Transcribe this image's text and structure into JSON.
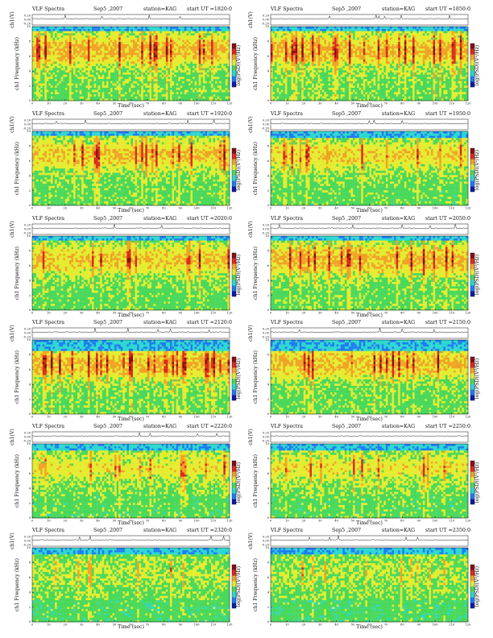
{
  "figure": {
    "header_left": "VLF Spectra",
    "date": "Sep5 ,2007",
    "station": "station=KAG",
    "start_prefix": "start UT =",
    "ch_ylabel": "ch1(V)",
    "freq_ylabel": "ch1 Frequency (kHz)",
    "xlabel": "Time (sec)",
    "colorbar_label": "log(PSD)(V²/Hz)"
  },
  "chart_data": [
    {
      "type": "heatmap",
      "start_ut": "1820:0",
      "xlabel": "Time (sec)",
      "ylabel": "ch1 Frequency (kHz)",
      "colorbar_label": "log(PSD)(V²/Hz)",
      "x_ticks": [
        0,
        10,
        20,
        30,
        40,
        50,
        60,
        70,
        80,
        90,
        100,
        110,
        120
      ],
      "y_ticks": [
        0,
        2,
        4,
        6,
        8,
        10
      ],
      "ch_ticks": [
        "0.20",
        "0.00",
        "-0.20"
      ],
      "xlim": [
        0,
        120
      ],
      "ylim": [
        0,
        10
      ],
      "activity": 0.85,
      "noise_band_top_khz": 9.3
    },
    {
      "type": "heatmap",
      "start_ut": "1850:0",
      "xlabel": "Time (sec)",
      "ylabel": "ch1 Frequency (kHz)",
      "colorbar_label": "log(PSD)(V²/Hz)",
      "x_ticks": [
        0,
        10,
        20,
        30,
        40,
        50,
        60,
        70,
        80,
        90,
        100,
        110,
        120
      ],
      "y_ticks": [
        0,
        2,
        4,
        6,
        8,
        10
      ],
      "ch_ticks": [
        "0.20",
        "0.00",
        "-0.20"
      ],
      "xlim": [
        0,
        120
      ],
      "ylim": [
        0,
        10
      ],
      "activity": 0.85,
      "noise_band_top_khz": 9.3
    },
    {
      "type": "heatmap",
      "start_ut": "1920:0",
      "xlabel": "Time (sec)",
      "ylabel": "ch1 Frequency (kHz)",
      "colorbar_label": "log(PSD)(V²/Hz)",
      "x_ticks": [
        0,
        10,
        20,
        30,
        40,
        50,
        60,
        70,
        80,
        90,
        100,
        110,
        120
      ],
      "y_ticks": [
        0,
        2,
        4,
        6,
        8,
        10
      ],
      "ch_ticks": [
        "0.20",
        "0.00",
        "-0.20"
      ],
      "xlim": [
        0,
        120
      ],
      "ylim": [
        0,
        10
      ],
      "activity": 0.75,
      "noise_band_top_khz": 9.5
    },
    {
      "type": "heatmap",
      "start_ut": "1950:0",
      "xlabel": "Time (sec)",
      "ylabel": "ch1 Frequency (kHz)",
      "colorbar_label": "log(PSD)(V²/Hz)",
      "x_ticks": [
        0,
        10,
        20,
        30,
        40,
        50,
        60,
        70,
        80,
        90,
        100,
        110,
        120
      ],
      "y_ticks": [
        0,
        2,
        4,
        6,
        8,
        10
      ],
      "ch_ticks": [
        "0.20",
        "0.00",
        "-0.20"
      ],
      "xlim": [
        0,
        120
      ],
      "ylim": [
        0,
        10
      ],
      "activity": 0.6,
      "noise_band_top_khz": 9.0
    },
    {
      "type": "heatmap",
      "start_ut": "2020:0",
      "xlabel": "Time (sec)",
      "ylabel": "ch1 Frequency (kHz)",
      "colorbar_label": "log(PSD)(V²/Hz)",
      "x_ticks": [
        0,
        10,
        20,
        30,
        40,
        50,
        60,
        70,
        80,
        90,
        100,
        110,
        120
      ],
      "y_ticks": [
        0,
        2,
        4,
        6,
        8,
        10
      ],
      "ch_ticks": [
        "0.20",
        "0.00",
        "-0.20"
      ],
      "xlim": [
        0,
        120
      ],
      "ylim": [
        0,
        10
      ],
      "activity": 0.7,
      "noise_band_top_khz": 9.5
    },
    {
      "type": "heatmap",
      "start_ut": "2050:0",
      "xlabel": "Time (sec)",
      "ylabel": "ch1 Frequency (kHz)",
      "colorbar_label": "log(PSD)(V²/Hz)",
      "x_ticks": [
        0,
        10,
        20,
        30,
        40,
        50,
        60,
        70,
        80,
        90,
        100,
        110,
        120
      ],
      "y_ticks": [
        0,
        2,
        4,
        6,
        8,
        10
      ],
      "ch_ticks": [
        "0.20",
        "0.00",
        "-0.20"
      ],
      "xlim": [
        0,
        120
      ],
      "ylim": [
        0,
        10
      ],
      "activity": 0.85,
      "noise_band_top_khz": 9.5
    },
    {
      "type": "heatmap",
      "start_ut": "2120:0",
      "xlabel": "Time (sec)",
      "ylabel": "ch1 Frequency (kHz)",
      "colorbar_label": "log(PSD)(V²/Hz)",
      "x_ticks": [
        0,
        10,
        20,
        30,
        40,
        50,
        60,
        70,
        80,
        90,
        100,
        110,
        120
      ],
      "y_ticks": [
        0,
        2,
        4,
        6,
        8,
        10
      ],
      "ch_ticks": [
        "0.20",
        "0.00",
        "-0.20"
      ],
      "xlim": [
        0,
        120
      ],
      "ylim": [
        0,
        10
      ],
      "activity": 0.85,
      "noise_band_top_khz": 8.5
    },
    {
      "type": "heatmap",
      "start_ut": "2150:0",
      "xlabel": "Time (sec)",
      "ylabel": "ch1 Frequency (kHz)",
      "colorbar_label": "log(PSD)(V²/Hz)",
      "x_ticks": [
        0,
        10,
        20,
        30,
        40,
        50,
        60,
        70,
        80,
        90,
        100,
        110,
        120
      ],
      "y_ticks": [
        0,
        2,
        4,
        6,
        8,
        10
      ],
      "ch_ticks": [
        "0.20",
        "0.00",
        "-0.20"
      ],
      "xlim": [
        0,
        120
      ],
      "ylim": [
        0,
        10
      ],
      "activity": 0.8,
      "noise_band_top_khz": 8.5
    },
    {
      "type": "heatmap",
      "start_ut": "2220:0",
      "xlabel": "Time (sec)",
      "ylabel": "ch1 Frequency (kHz)",
      "colorbar_label": "log(PSD)(V²/Hz)",
      "x_ticks": [
        0,
        10,
        20,
        30,
        40,
        50,
        60,
        70,
        80,
        90,
        100,
        110,
        120
      ],
      "y_ticks": [
        0,
        2,
        4,
        6,
        8,
        10
      ],
      "ch_ticks": [
        "0.20",
        "0.00",
        "-0.20"
      ],
      "xlim": [
        0,
        120
      ],
      "ylim": [
        0,
        10
      ],
      "activity": 0.5,
      "noise_band_top_khz": 9.0
    },
    {
      "type": "heatmap",
      "start_ut": "2250:0",
      "xlabel": "Time (sec)",
      "ylabel": "ch1 Frequency (kHz)",
      "colorbar_label": "log(PSD)(V²/Hz)",
      "x_ticks": [
        0,
        10,
        20,
        30,
        40,
        50,
        60,
        70,
        80,
        90,
        100,
        110,
        120
      ],
      "y_ticks": [
        0,
        2,
        4,
        6,
        8,
        10
      ],
      "ch_ticks": [
        "0.20",
        "0.00",
        "-0.20"
      ],
      "xlim": [
        0,
        120
      ],
      "ylim": [
        0,
        10
      ],
      "activity": 0.5,
      "noise_band_top_khz": 9.0
    },
    {
      "type": "heatmap",
      "start_ut": "2320:0",
      "xlabel": "Time (sec)",
      "ylabel": "ch1 Frequency (kHz)",
      "colorbar_label": "log(PSD)(V²/Hz)",
      "x_ticks": [
        0,
        10,
        20,
        30,
        40,
        50,
        60,
        70,
        80,
        90,
        100,
        110,
        120
      ],
      "y_ticks": [
        0,
        2,
        4,
        6,
        8,
        10
      ],
      "ch_ticks": [
        "0.20",
        "0.00",
        "-0.20"
      ],
      "xlim": [
        0,
        120
      ],
      "ylim": [
        0,
        10
      ],
      "activity": 0.25,
      "noise_band_top_khz": 9.0
    },
    {
      "type": "heatmap",
      "start_ut": "2350:0",
      "xlabel": "Time (sec)",
      "ylabel": "ch1 Frequency (kHz)",
      "colorbar_label": "log(PSD)(V²/Hz)",
      "x_ticks": [
        0,
        10,
        20,
        30,
        40,
        50,
        60,
        70,
        80,
        90,
        100,
        110,
        120
      ],
      "y_ticks": [
        0,
        2,
        4,
        6,
        8,
        10
      ],
      "ch_ticks": [
        "0.20",
        "0.00",
        "-0.20"
      ],
      "xlim": [
        0,
        120
      ],
      "ylim": [
        0,
        10
      ],
      "activity": 0.2,
      "noise_band_top_khz": 9.0
    }
  ],
  "colormap": [
    "#0b1aa8",
    "#1f7cf0",
    "#2bd8d0",
    "#48d85a",
    "#e4ec2e",
    "#f0a324",
    "#dc2a1c",
    "#8a0c10"
  ]
}
